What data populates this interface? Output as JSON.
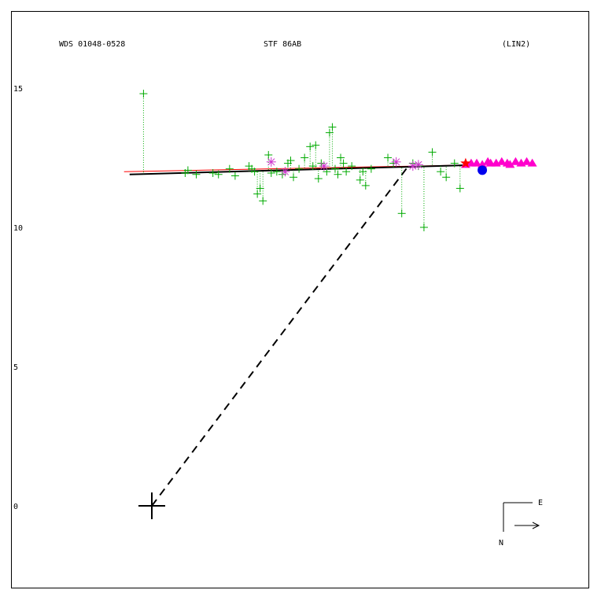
{
  "header": {
    "left": "WDS 01048-0528",
    "center": "STF  86AB",
    "right": "(LIN2)"
  },
  "compass": {
    "east": "E",
    "north": "N"
  },
  "chart_data": {
    "type": "scatter",
    "title": "STF  86AB",
    "xlabel": "",
    "ylabel": "",
    "x_range": [
      -5.0,
      15.7
    ],
    "ylim": [
      -3.0,
      17.8
    ],
    "y_ticks": [
      0,
      5,
      10,
      15
    ],
    "primary_star": {
      "x": 0,
      "y": 0
    },
    "fit_line": [
      [
        -0.8,
        11.9
      ],
      [
        12.0,
        12.25
      ]
    ],
    "ref_line": [
      [
        -1.0,
        12.0
      ],
      [
        12.0,
        12.25
      ]
    ],
    "dashed_line": [
      [
        0,
        0
      ],
      [
        9.2,
        12.15
      ]
    ],
    "series": [
      {
        "marker": "plus",
        "color": "#00aa00",
        "points": [
          [
            -0.3,
            14.8
          ],
          [
            1.3,
            12.05
          ],
          [
            1.2,
            11.95
          ],
          [
            1.6,
            11.9
          ],
          [
            2.2,
            11.95
          ],
          [
            2.4,
            11.9
          ],
          [
            2.8,
            12.1
          ],
          [
            3.0,
            11.85
          ],
          [
            3.5,
            12.2
          ],
          [
            3.6,
            12.1
          ],
          [
            3.7,
            12.0
          ],
          [
            3.8,
            11.2
          ],
          [
            3.9,
            11.4
          ],
          [
            4.0,
            10.95
          ],
          [
            4.2,
            12.6
          ],
          [
            4.3,
            11.95
          ],
          [
            4.5,
            12.0
          ],
          [
            4.7,
            11.9
          ],
          [
            4.9,
            12.3
          ],
          [
            5.0,
            12.4
          ],
          [
            5.1,
            11.8
          ],
          [
            5.3,
            12.1
          ],
          [
            5.5,
            12.5
          ],
          [
            5.7,
            12.9
          ],
          [
            5.8,
            12.2
          ],
          [
            5.9,
            12.95
          ],
          [
            6.0,
            11.75
          ],
          [
            6.1,
            12.3
          ],
          [
            6.3,
            12.0
          ],
          [
            6.4,
            13.4
          ],
          [
            6.5,
            13.6
          ],
          [
            6.6,
            12.1
          ],
          [
            6.7,
            11.9
          ],
          [
            6.8,
            12.5
          ],
          [
            6.9,
            12.3
          ],
          [
            7.0,
            12.0
          ],
          [
            7.2,
            12.2
          ],
          [
            7.5,
            11.7
          ],
          [
            7.6,
            12.0
          ],
          [
            7.7,
            11.5
          ],
          [
            7.9,
            12.1
          ],
          [
            8.5,
            12.5
          ],
          [
            8.7,
            12.3
          ],
          [
            9.0,
            10.5
          ],
          [
            9.4,
            12.3
          ],
          [
            9.6,
            12.2
          ],
          [
            9.8,
            10.0
          ],
          [
            10.1,
            12.7
          ],
          [
            10.4,
            12.0
          ],
          [
            10.6,
            11.8
          ],
          [
            10.9,
            12.3
          ],
          [
            11.1,
            11.4
          ]
        ]
      },
      {
        "marker": "asterisk",
        "color": "#cc33cc",
        "points": [
          [
            4.3,
            12.35
          ],
          [
            4.8,
            12.0
          ],
          [
            6.2,
            12.2
          ],
          [
            8.8,
            12.35
          ],
          [
            9.4,
            12.2
          ],
          [
            9.6,
            12.25
          ]
        ]
      },
      {
        "marker": "triangle",
        "color": "#ff00cc",
        "points": [
          [
            11.3,
            12.25
          ],
          [
            11.5,
            12.3
          ],
          [
            11.7,
            12.3
          ],
          [
            11.9,
            12.25
          ],
          [
            12.1,
            12.35
          ],
          [
            12.2,
            12.3
          ],
          [
            12.4,
            12.3
          ],
          [
            12.6,
            12.35
          ],
          [
            12.8,
            12.3
          ],
          [
            12.9,
            12.25
          ],
          [
            13.1,
            12.35
          ],
          [
            13.3,
            12.3
          ],
          [
            13.5,
            12.35
          ],
          [
            13.7,
            12.3
          ]
        ]
      },
      {
        "marker": "star",
        "color": "#ff0000",
        "points": [
          [
            11.3,
            12.3
          ]
        ]
      },
      {
        "marker": "circle",
        "color": "#0000ee",
        "points": [
          [
            11.9,
            12.05
          ]
        ]
      }
    ]
  }
}
